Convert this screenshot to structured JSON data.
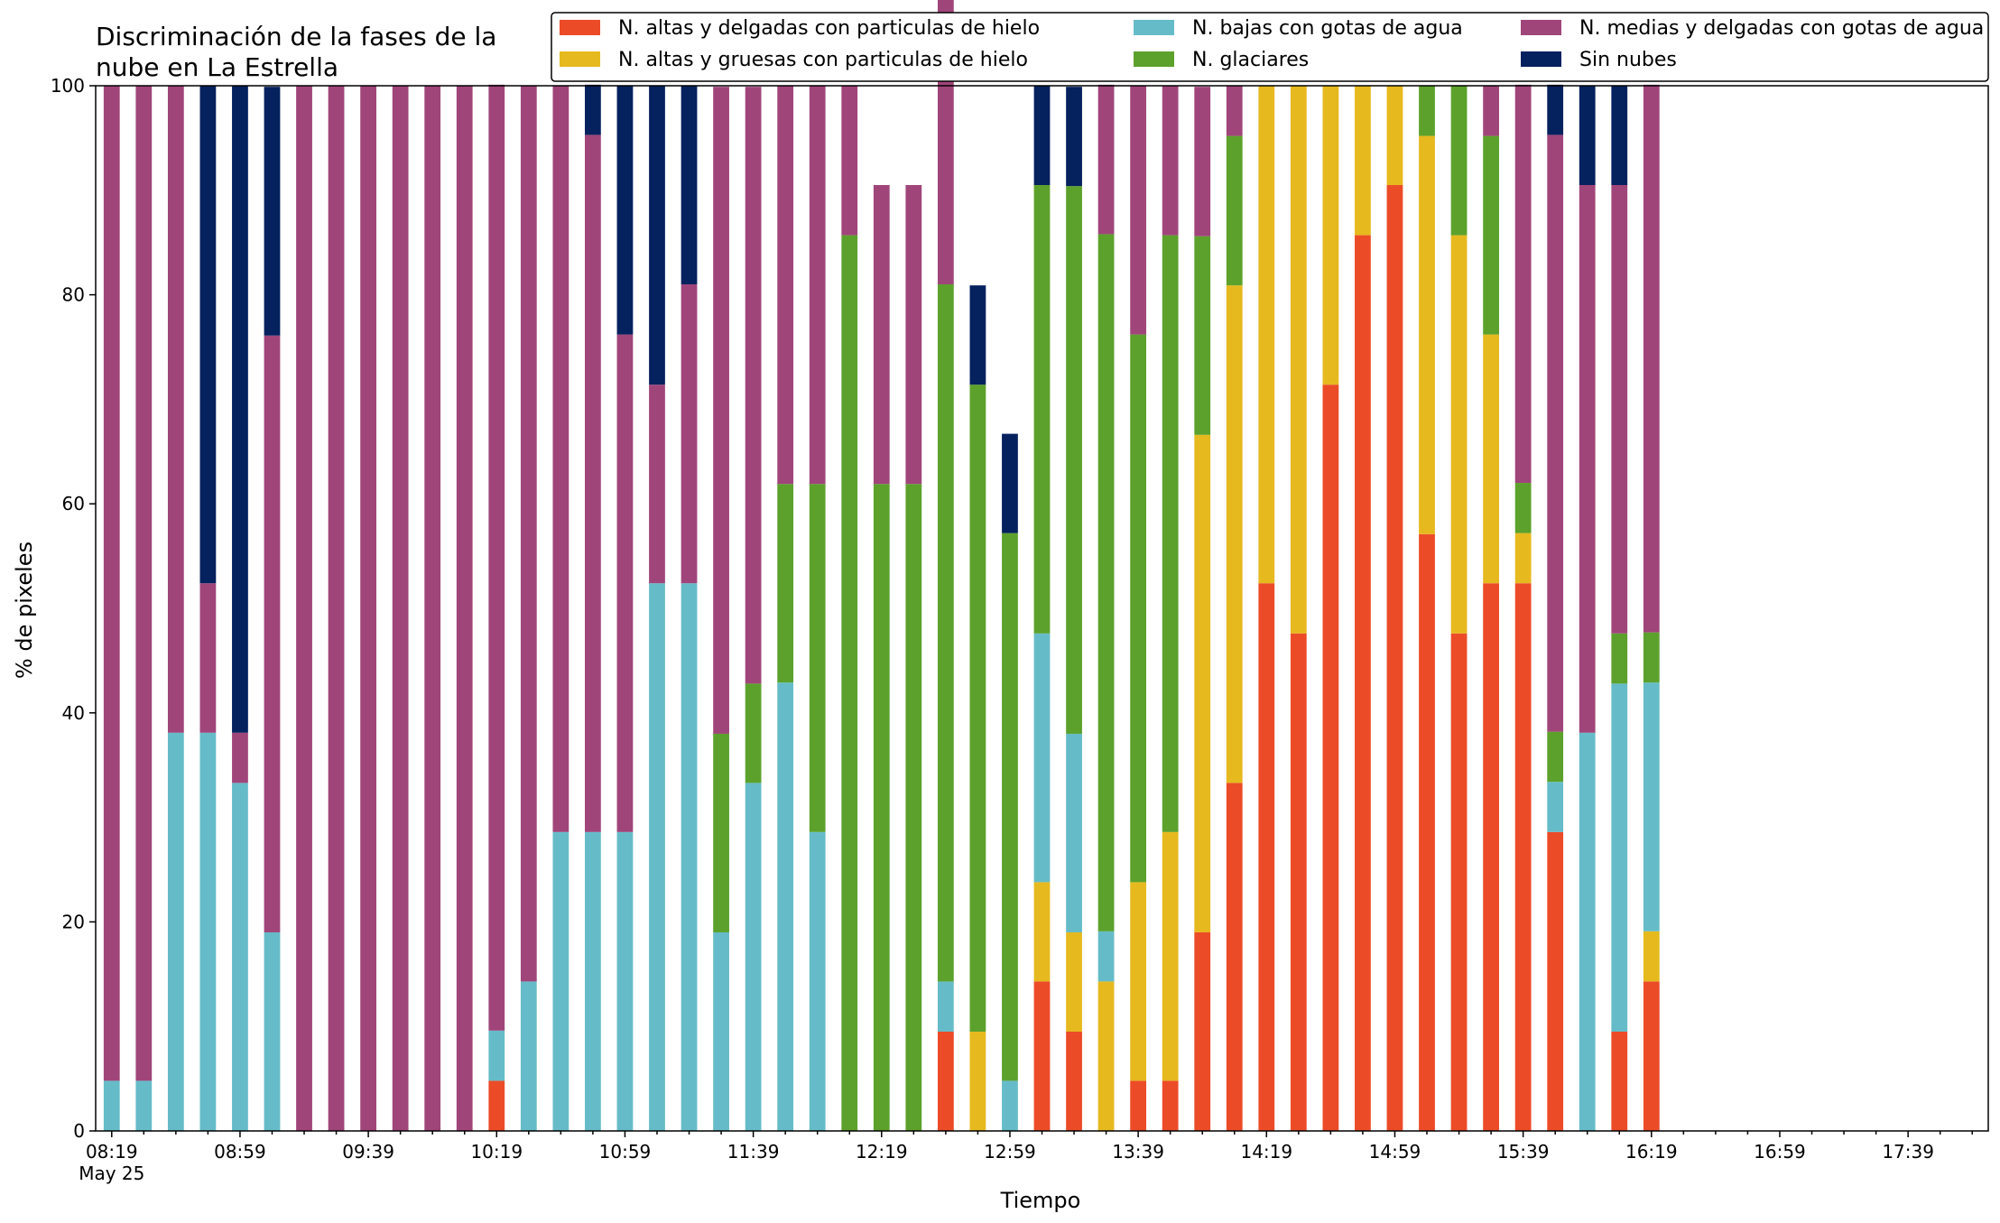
{
  "chart_data": {
    "type": "bar",
    "stacked": true,
    "title_line1": "Discriminación de la fases de la",
    "title_line2": "nube en La Estrella",
    "xlabel": "Tiempo",
    "ylabel": "% de pixeles",
    "ylim": [
      0,
      100
    ],
    "yticks": [
      "0",
      "20",
      "40",
      "60",
      "80",
      "100"
    ],
    "xtick_labels": [
      "08:19",
      "08:59",
      "09:39",
      "10:19",
      "10:59",
      "11:39",
      "12:19",
      "12:59",
      "13:39",
      "14:19",
      "14:59",
      "15:39",
      "16:19",
      "16:59",
      "17:39"
    ],
    "xtick_date": "May 25",
    "grid": false,
    "legend_position": "top-right",
    "legend_columns": 3,
    "slots_total": 59,
    "series": [
      {
        "name": "N. altas y delgadas con particulas de hielo",
        "color": "#ec4b28",
        "values": [
          0,
          0,
          0,
          0,
          0,
          0,
          0,
          0,
          0,
          0,
          0,
          0,
          4.8,
          0,
          0,
          0,
          0,
          0,
          0,
          0,
          0,
          0,
          0,
          0,
          0,
          0,
          9.5,
          0,
          0,
          14.3,
          9.5,
          0,
          4.8,
          4.8,
          19,
          33.3,
          52.4,
          47.6,
          71.4,
          85.7,
          90.5,
          57.1,
          47.6,
          52.4,
          52.4,
          28.6,
          0,
          9.5,
          14.3
        ]
      },
      {
        "name": "N. altas y gruesas con particulas de hielo",
        "color": "#e6b91e",
        "values": [
          0,
          0,
          0,
          0,
          0,
          0,
          0,
          0,
          0,
          0,
          0,
          0,
          0,
          0,
          0,
          0,
          0,
          0,
          0,
          0,
          0,
          0,
          0,
          0,
          0,
          0,
          0,
          9.5,
          0,
          9.5,
          9.5,
          14.3,
          19,
          23.8,
          47.6,
          47.6,
          47.6,
          52.4,
          28.6,
          14.3,
          9.5,
          38.1,
          38.1,
          23.8,
          4.8,
          0,
          0,
          0,
          4.8
        ]
      },
      {
        "name": "N. bajas con gotas de agua",
        "color": "#65bcc8",
        "values": [
          4.8,
          4.8,
          38.1,
          38.1,
          33.3,
          19,
          0,
          0,
          0,
          0,
          0,
          0,
          4.8,
          14.3,
          28.6,
          28.6,
          28.6,
          52.4,
          52.4,
          19,
          33.3,
          42.9,
          28.6,
          0,
          0,
          0,
          4.8,
          0,
          4.8,
          23.8,
          19,
          4.8,
          0,
          0,
          0,
          0,
          0,
          0,
          0,
          0,
          0,
          0,
          0,
          0,
          0,
          4.8,
          38.1,
          33.3,
          23.8
        ]
      },
      {
        "name": "N. glaciares",
        "color": "#5ca12c",
        "values": [
          0,
          0,
          0,
          0,
          0,
          0,
          0,
          0,
          0,
          0,
          0,
          0,
          0,
          0,
          0,
          0,
          0,
          0,
          0,
          19,
          9.5,
          19,
          33.3,
          85.7,
          61.9,
          61.9,
          66.7,
          61.9,
          52.4,
          42.9,
          52.4,
          66.7,
          52.4,
          57.1,
          19,
          14.3,
          0,
          0,
          0,
          0,
          0,
          4.8,
          14.3,
          19,
          4.8,
          4.8,
          0,
          4.8,
          4.8
        ]
      },
      {
        "name": "N. medias y delgadas con gotas de agua",
        "color": "#a0457a",
        "values": [
          95.2,
          95.2,
          61.9,
          14.3,
          4.8,
          57.1,
          100,
          100,
          100,
          100,
          100,
          100,
          90.5,
          85.7,
          71.4,
          66.7,
          47.6,
          19,
          28.6,
          61.9,
          57.1,
          38.1,
          38.1,
          14.3,
          28.6,
          28.6,
          28.6,
          0,
          0,
          0,
          0,
          14.3,
          23.8,
          14.3,
          14.3,
          4.8,
          0,
          0,
          0,
          0,
          0,
          0,
          0,
          4.8,
          38.1,
          57.1,
          52.4,
          42.9,
          52.4
        ]
      },
      {
        "name": "Sin nubes",
        "color": "#05215e",
        "values": [
          0,
          0,
          0,
          47.6,
          61.9,
          23.8,
          0,
          0,
          0,
          0,
          0,
          0,
          0,
          0,
          0,
          4.8,
          23.8,
          28.6,
          19,
          0,
          0,
          0,
          0,
          0,
          0,
          0,
          0,
          9.5,
          9.5,
          9.5,
          9.5,
          0,
          0,
          0,
          0,
          0,
          0,
          0,
          0,
          0,
          0,
          0,
          0,
          0,
          0,
          4.8,
          9.5,
          9.5,
          0
        ]
      }
    ]
  }
}
